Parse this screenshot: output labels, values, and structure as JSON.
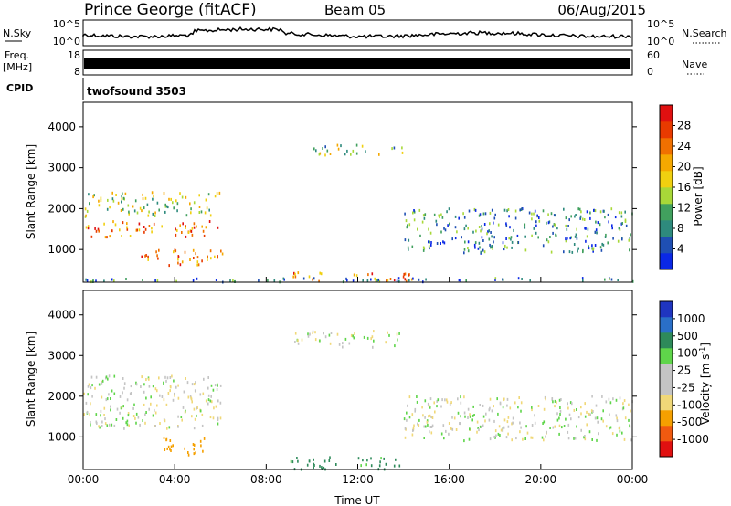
{
  "header": {
    "station": "Prince George (fitACF)",
    "beam": "Beam 05",
    "date": "06/Aug/2015"
  },
  "noise_panel": {
    "left_label": "N.Sky",
    "left_ticks": [
      "10^5",
      "10^0"
    ],
    "right_label": "N.Search",
    "right_ticks": [
      "10^5",
      "10^0"
    ]
  },
  "freq_panel": {
    "left_label_1": "Freq.",
    "left_label_2": "[MHz]",
    "left_ticks": [
      "18",
      "8"
    ],
    "right_label": "Nave",
    "right_ticks": [
      "60",
      "0"
    ]
  },
  "cpid_panel": {
    "label": "CPID",
    "value": "twofsound 3503"
  },
  "colors": {
    "power_scale": [
      "#0a28e6",
      "#1f4fb3",
      "#2e8a7d",
      "#41a05e",
      "#a8d838",
      "#f0d010",
      "#f5a800",
      "#f07000",
      "#e83a00",
      "#e01010"
    ],
    "velocity_scale": [
      "#e01010",
      "#f05a10",
      "#f5a000",
      "#f0d878",
      "#c4c4c4",
      "#c4c4c4",
      "#5fd54a",
      "#2e8a5a",
      "#2a6fc8",
      "#1f35c0"
    ]
  },
  "chart_data": [
    {
      "type": "heatmap",
      "name": "power",
      "ylabel": "Slant Range [km]",
      "yticks": [
        1000,
        2000,
        3000,
        4000
      ],
      "ylim": [
        200,
        4600
      ],
      "xlim_hours": [
        0,
        24
      ],
      "colorbar": {
        "label": "Power [dB]",
        "ticks": [
          "4",
          "8",
          "12",
          "16",
          "20",
          "24",
          "28"
        ],
        "range": [
          0,
          30
        ]
      },
      "approx_echo_regions": [
        {
          "t_start": 0.0,
          "t_end": 6.0,
          "r_start": 1300,
          "r_end": 1700,
          "level_dB": 22
        },
        {
          "t_start": 0.0,
          "t_end": 6.0,
          "r_start": 1800,
          "r_end": 2400,
          "level_dB": 14
        },
        {
          "t_start": 2.5,
          "t_end": 6.2,
          "r_start": 600,
          "r_end": 1000,
          "level_dB": 22
        },
        {
          "t_start": 9.0,
          "t_end": 14.5,
          "r_start": 200,
          "r_end": 450,
          "level_dB": 22
        },
        {
          "t_start": 10.0,
          "t_end": 14.0,
          "r_start": 3300,
          "r_end": 3550,
          "level_dB": 12
        },
        {
          "t_start": 14.0,
          "t_end": 24.0,
          "r_start": 900,
          "r_end": 2000,
          "level_dB": 8
        },
        {
          "t_start": 0.0,
          "t_end": 24.0,
          "r_start": 200,
          "r_end": 300,
          "level_dB": 6
        }
      ]
    },
    {
      "type": "heatmap",
      "name": "velocity",
      "ylabel": "Slant Range [km]",
      "xlabel": "Time UT",
      "xticks": [
        "00:00",
        "04:00",
        "08:00",
        "12:00",
        "16:00",
        "20:00",
        "00:00"
      ],
      "yticks": [
        1000,
        2000,
        3000,
        4000
      ],
      "ylim": [
        200,
        4600
      ],
      "xlim_hours": [
        0,
        24
      ],
      "colorbar": {
        "label": "Velocity [m s^-1]",
        "ticks": [
          "-1000",
          "-500",
          "-100",
          "-25",
          "25",
          "100",
          "500",
          "1000"
        ]
      },
      "approx_echo_regions": [
        {
          "t_start": 0.0,
          "t_end": 6.0,
          "r_start": 1200,
          "r_end": 2500,
          "velocity": 0
        },
        {
          "t_start": 3.5,
          "t_end": 5.5,
          "r_start": 500,
          "r_end": 1000,
          "velocity": -300
        },
        {
          "t_start": 9.0,
          "t_end": 14.0,
          "r_start": 200,
          "r_end": 500,
          "velocity": 150
        },
        {
          "t_start": 9.0,
          "t_end": 14.0,
          "r_start": 3200,
          "r_end": 3600,
          "velocity": 0
        },
        {
          "t_start": 14.0,
          "t_end": 24.0,
          "r_start": 900,
          "r_end": 2000,
          "velocity": 0
        }
      ]
    }
  ]
}
